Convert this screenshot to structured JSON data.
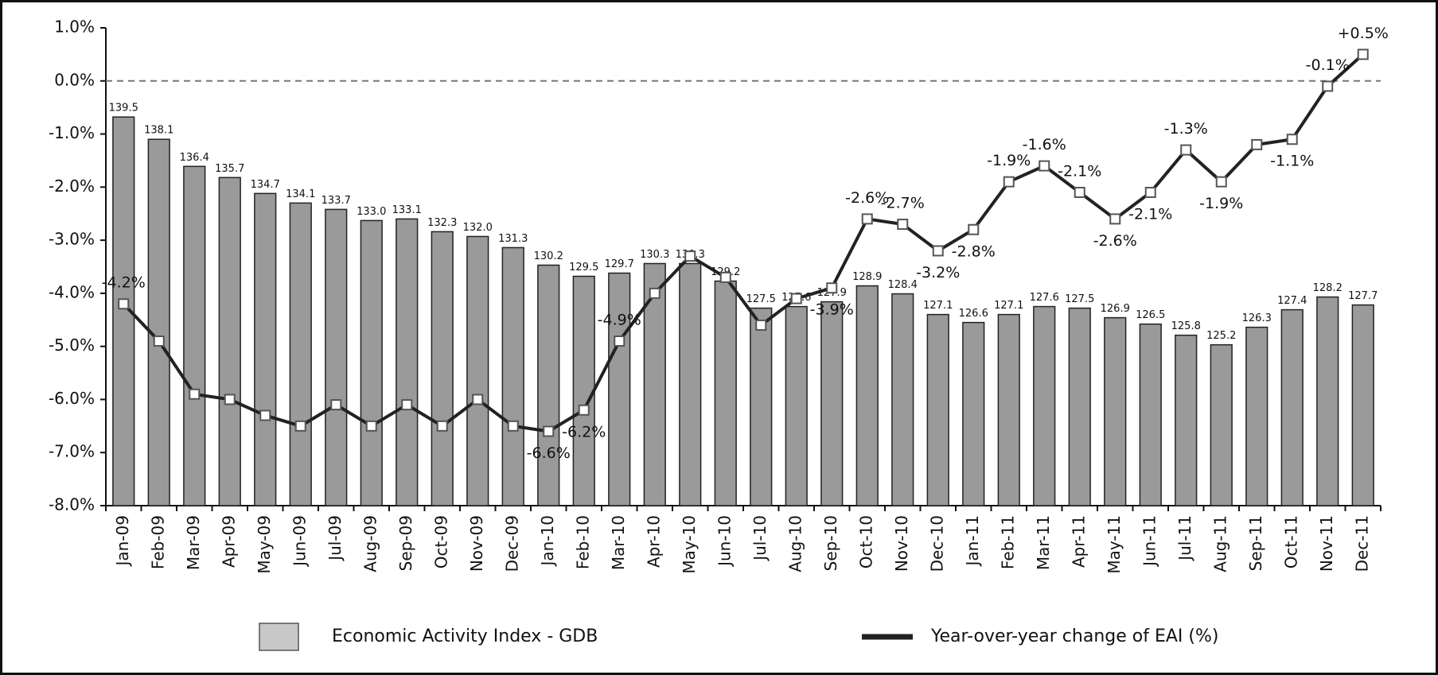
{
  "chart_data": {
    "type": "combo",
    "categories": [
      "Jan-09",
      "Feb-09",
      "Mar-09",
      "Apr-09",
      "May-09",
      "Jun-09",
      "Jul-09",
      "Aug-09",
      "Sep-09",
      "Oct-09",
      "Nov-09",
      "Dec-09",
      "Jan-10",
      "Feb-10",
      "Mar-10",
      "Apr-10",
      "May-10",
      "Jun-10",
      "Jul-10",
      "Aug-10",
      "Sep-10",
      "Oct-10",
      "Nov-10",
      "Dec-10",
      "Jan-11",
      "Feb-11",
      "Mar-11",
      "Apr-11",
      "May-11",
      "Jun-11",
      "Jul-11",
      "Aug-11",
      "Sep-11",
      "Oct-11",
      "Nov-11",
      "Dec-11"
    ],
    "series": [
      {
        "name": "Economic Activity  Index - GDB",
        "type": "bar",
        "axis": "y2",
        "color": "#9a9a9a",
        "legend_color": "#c8c8c8",
        "values": [
          139.5,
          138.1,
          136.4,
          135.7,
          134.7,
          134.1,
          133.7,
          133.0,
          133.1,
          132.3,
          132.0,
          131.3,
          130.2,
          129.5,
          129.7,
          130.3,
          130.3,
          129.2,
          127.5,
          127.6,
          127.9,
          128.9,
          128.4,
          127.1,
          126.6,
          127.1,
          127.6,
          127.5,
          126.9,
          126.5,
          125.8,
          125.2,
          126.3,
          127.4,
          128.2,
          127.7
        ],
        "value_labels": [
          "139.5",
          "138.1",
          "136.4",
          "135.7",
          "134.7",
          "134.1",
          "133.7",
          "133.0",
          "133.1",
          "132.3",
          "132.0",
          "131.3",
          "130.2",
          "129.5",
          "129.7",
          "130.3",
          "130.3",
          "129.2",
          "127.5",
          "127.6",
          "127.9",
          "128.9",
          "128.4",
          "127.1",
          "126.6",
          "127.1",
          "127.6",
          "127.5",
          "126.9",
          "126.5",
          "125.8",
          "125.2",
          "126.3",
          "127.4",
          "128.2",
          "127.7"
        ]
      },
      {
        "name": "Year-over-year change of EAI (%)",
        "type": "line",
        "color": "#222222",
        "values": [
          -4.2,
          -4.9,
          -5.9,
          -6.0,
          -6.3,
          -6.5,
          -6.1,
          -6.5,
          -6.1,
          -6.5,
          -6.0,
          -6.5,
          -6.6,
          -6.2,
          -4.9,
          -4.0,
          -3.3,
          -3.7,
          -4.6,
          -4.1,
          -3.9,
          -2.6,
          -2.7,
          -3.2,
          -2.8,
          -1.9,
          -1.6,
          -2.1,
          -2.6,
          -2.1,
          -1.3,
          -1.9,
          -1.2,
          -1.1,
          -0.1,
          0.5
        ],
        "value_labels": [
          "-4.2%",
          null,
          null,
          null,
          null,
          null,
          null,
          null,
          null,
          null,
          null,
          null,
          "-6.6%",
          "-6.2%",
          "-4.9%",
          null,
          null,
          null,
          null,
          null,
          "-3.9%",
          "-2.6%",
          "-2.7%",
          "-3.2%",
          "-2.8%",
          "-1.9%",
          "-1.6%",
          "-2.1%",
          "-2.6%",
          "-2.1%",
          "-1.3%",
          "-1.9%",
          null,
          "-1.1%",
          "-0.1%",
          "+0.5%"
        ]
      }
    ],
    "ylim": [
      -8.0,
      1.0
    ],
    "yticks": [
      {
        "value": 1.0,
        "label": "1.0%"
      },
      {
        "value": 0.0,
        "label": "0.0%"
      },
      {
        "value": -1.0,
        "label": "-1.0%"
      },
      {
        "value": -2.0,
        "label": "-2.0%"
      },
      {
        "value": -3.0,
        "label": "-3.0%"
      },
      {
        "value": -4.0,
        "label": "-4.0%"
      },
      {
        "value": -5.0,
        "label": "-5.0%"
      },
      {
        "value": -6.0,
        "label": "-6.0%"
      },
      {
        "value": -7.0,
        "label": "-7.0%"
      },
      {
        "value": -8.0,
        "label": "-8.0%"
      }
    ],
    "y2lim": [
      115.1,
      145.1
    ],
    "zero_line": true
  }
}
